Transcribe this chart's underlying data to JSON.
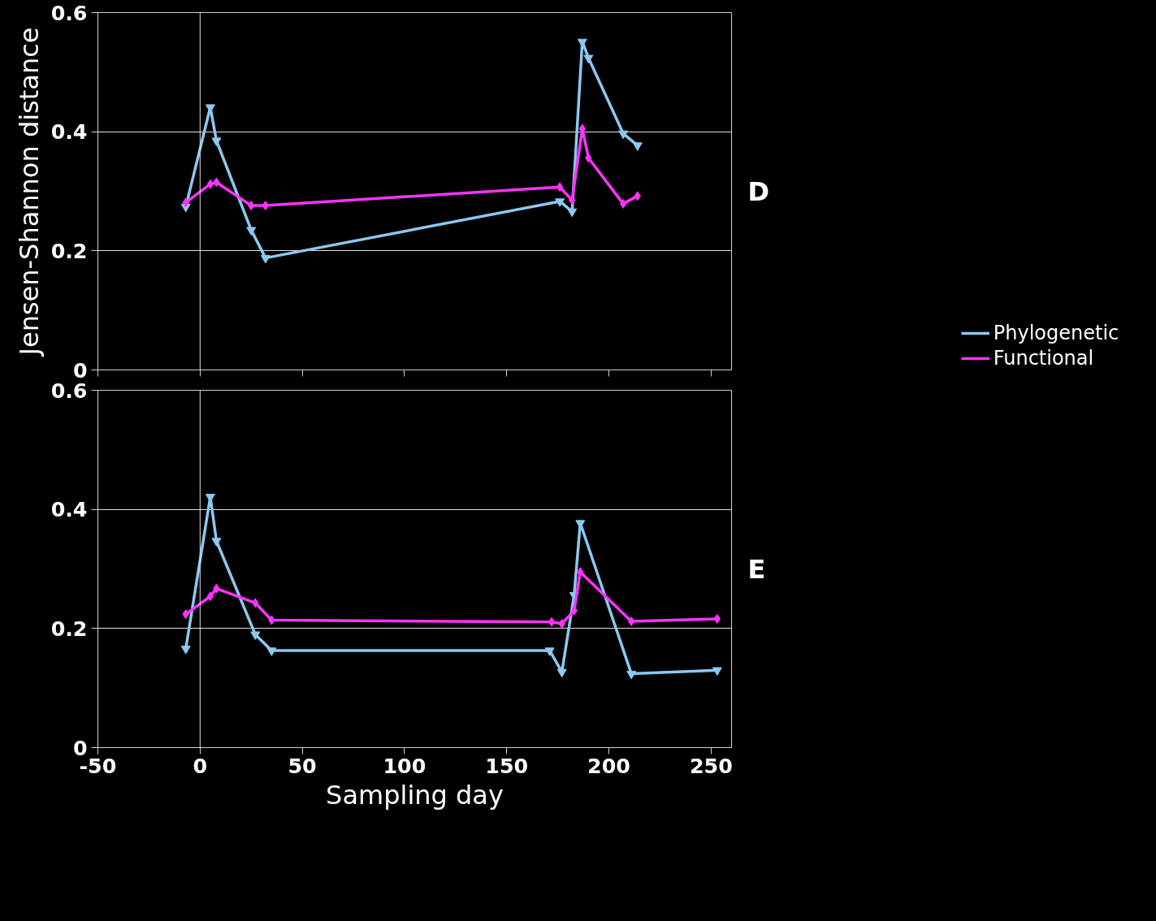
{
  "chart_data": [
    {
      "type": "line",
      "ylabel": "Jensen-Shannon distance",
      "annotations": [
        "D"
      ],
      "xlim": [
        -50,
        260
      ],
      "xticks": [
        {
          "value": -50,
          "label": null
        },
        {
          "value": 0,
          "label": null
        },
        {
          "value": 50,
          "label": null
        },
        {
          "value": 100,
          "label": null
        },
        {
          "value": 150,
          "label": null
        },
        {
          "value": 200,
          "label": null
        },
        {
          "value": 250,
          "label": null
        }
      ],
      "ylim": [
        0,
        0.6
      ],
      "yticks": [
        0,
        0.2,
        0.4,
        0.6
      ],
      "tick_labels": "y",
      "grid": "y",
      "legend": "right",
      "line_style": "solid",
      "ref_lines": [
        {
          "axis": "x",
          "value": 0,
          "color": "#e0e0e0"
        }
      ],
      "series": [
        {
          "name": "Phylogenetic",
          "color": "#8cc8f0",
          "marker": "triangle",
          "x": [
            -7,
            5,
            8,
            25,
            32,
            176,
            182,
            187,
            190,
            207,
            214
          ],
          "values": [
            0.274,
            0.441,
            0.385,
            0.235,
            0.188,
            0.283,
            0.266,
            0.551,
            0.524,
            0.397,
            0.377
          ]
        },
        {
          "name": "Functional",
          "color": "#ff33ff",
          "marker": "diamond",
          "x": [
            -7,
            5,
            8,
            25,
            32,
            176,
            182,
            187,
            190,
            207,
            214
          ],
          "values": [
            0.281,
            0.312,
            0.315,
            0.276,
            0.276,
            0.307,
            0.285,
            0.405,
            0.356,
            0.279,
            0.292
          ]
        }
      ]
    },
    {
      "type": "line",
      "xlabel": "Sampling day",
      "annotations": [
        "E"
      ],
      "xlim": [
        -50,
        260
      ],
      "xticks": [
        -50,
        0,
        50,
        100,
        150,
        200,
        250
      ],
      "ylim": [
        0,
        0.6
      ],
      "yticks": [
        0,
        0.2,
        0.4,
        0.6
      ],
      "grid": "y",
      "line_style": "solid",
      "ref_lines": [
        {
          "axis": "x",
          "value": 0,
          "color": "#e0e0e0"
        }
      ],
      "series": [
        {
          "color": "#8cc8f0",
          "marker": "triangle",
          "x": [
            -7,
            5,
            8,
            27,
            35,
            171,
            177,
            183,
            186,
            211,
            253
          ],
          "values": [
            0.166,
            0.421,
            0.347,
            0.19,
            0.163,
            0.163,
            0.127,
            0.256,
            0.377,
            0.124,
            0.13
          ]
        },
        {
          "color": "#ff33ff",
          "marker": "diamond",
          "x": [
            -7,
            5,
            8,
            27,
            35,
            172,
            177,
            183,
            186,
            211,
            253
          ],
          "values": [
            0.224,
            0.254,
            0.267,
            0.243,
            0.214,
            0.211,
            0.208,
            0.23,
            0.295,
            0.212,
            0.216
          ]
        }
      ]
    }
  ]
}
